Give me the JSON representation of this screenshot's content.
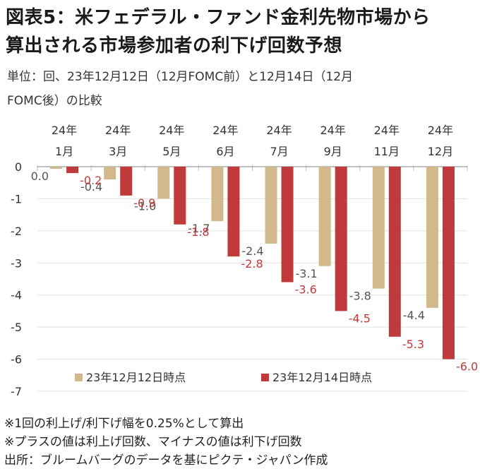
{
  "title_line1": "図表5：米フェデラル・ファンド金利先物市場から",
  "title_line2": "算出される市場参加者の利下げ回数予想",
  "subtitle_line1": "単位：回、23年12月12日（12月FOMC前）と12月14日（12月",
  "subtitle_line2": "FOMC後）の比較",
  "chart_data": {
    "type": "bar",
    "categories": [
      [
        "24年",
        "1月"
      ],
      [
        "24年",
        "3月"
      ],
      [
        "24年",
        "5月"
      ],
      [
        "24年",
        "6月"
      ],
      [
        "24年",
        "7月"
      ],
      [
        "24年",
        "9月"
      ],
      [
        "24年",
        "11月"
      ],
      [
        "24年",
        "12月"
      ]
    ],
    "series": [
      {
        "name": "23年12月12日時点",
        "color": "#d2b98c",
        "values": [
          0.0,
          -0.4,
          -1.0,
          -1.7,
          -2.4,
          -3.1,
          -3.8,
          -4.4
        ],
        "labels": [
          "0.0",
          "-0.4",
          "-1.0",
          "-1.7",
          "-2.4",
          "-3.1",
          "-3.8",
          "-4.4"
        ],
        "label_color": "#555555"
      },
      {
        "name": "23年12月14日時点",
        "color": "#c0393b",
        "values": [
          -0.2,
          -0.9,
          -1.8,
          -2.8,
          -3.6,
          -4.5,
          -5.3,
          -6.0
        ],
        "labels": [
          "-0.2",
          "-0.9",
          "-1.8",
          "-2.8",
          "-3.6",
          "-4.5",
          "-5.3",
          "-6.0"
        ],
        "label_color": "#c0393b"
      }
    ],
    "yticks": [
      "0",
      "-1",
      "-2",
      "-3",
      "-4",
      "-5",
      "-6",
      "-7"
    ],
    "ylim": [
      -7,
      0
    ],
    "grid": true,
    "legend": "bottom"
  },
  "notes": [
    "※1回の利上げ/利下げ幅を0.25%として算出",
    "※プラスの値は利上げ回数、マイナスの値は利下げ回数",
    "出所：ブルームバーグのデータを基にピクテ・ジャパン作成"
  ]
}
